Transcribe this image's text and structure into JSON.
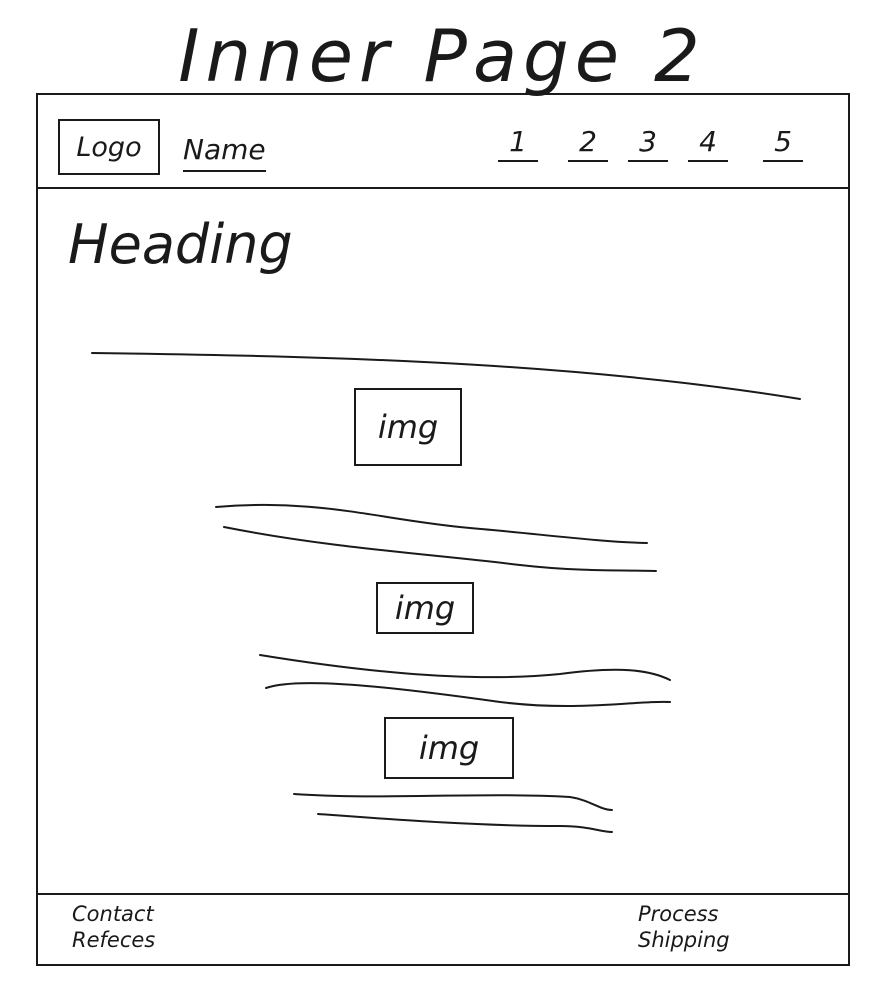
{
  "page_title": "Inner Page 2",
  "header": {
    "logo": "Logo",
    "name": "Name",
    "nav": [
      "1",
      "2",
      "3",
      "4",
      "5"
    ]
  },
  "main": {
    "heading": "Heading",
    "images": [
      "img",
      "img",
      "img"
    ]
  },
  "footer": {
    "left": [
      "Contact",
      "Refeces"
    ],
    "right": [
      "Process",
      "Shipping"
    ]
  }
}
